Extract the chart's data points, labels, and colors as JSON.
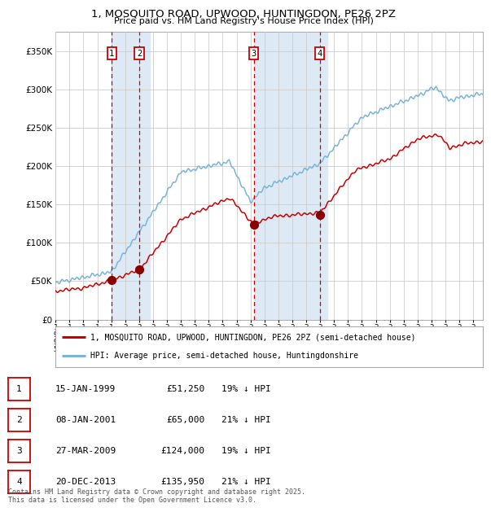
{
  "title_line1": "1, MOSQUITO ROAD, UPWOOD, HUNTINGDON, PE26 2PZ",
  "title_line2": "Price paid vs. HM Land Registry's House Price Index (HPI)",
  "legend_entry1": "1, MOSQUITO ROAD, UPWOOD, HUNTINGDON, PE26 2PZ (semi-detached house)",
  "legend_entry2": "HPI: Average price, semi-detached house, Huntingdonshire",
  "footer": "Contains HM Land Registry data © Crown copyright and database right 2025.\nThis data is licensed under the Open Government Licence v3.0.",
  "transactions": [
    {
      "num": 1,
      "date": "15-JAN-1999",
      "price": "£51,250",
      "pct": "19% ↓ HPI"
    },
    {
      "num": 2,
      "date": "08-JAN-2001",
      "price": "£65,000",
      "pct": "21% ↓ HPI"
    },
    {
      "num": 3,
      "date": "27-MAR-2009",
      "price": "£124,000",
      "pct": "19% ↓ HPI"
    },
    {
      "num": 4,
      "date": "20-DEC-2013",
      "price": "£135,950",
      "pct": "21% ↓ HPI"
    }
  ],
  "transaction_dates_decimal": [
    1999.04,
    2001.02,
    2009.23,
    2013.97
  ],
  "transaction_prices": [
    51250,
    65000,
    124000,
    135950
  ],
  "shade_ranges": [
    [
      1999.04,
      2001.75
    ],
    [
      2009.23,
      2014.5
    ]
  ],
  "red_line_color": "#cc0000",
  "blue_line_color": "#7ab4d8",
  "vline_color": "#cc0000",
  "shade_color": "#ddeaf5",
  "background_color": "#ffffff",
  "grid_color": "#cccccc",
  "ylim": [
    0,
    375000
  ],
  "yticks": [
    0,
    50000,
    100000,
    150000,
    200000,
    250000,
    300000,
    350000
  ],
  "xmin": 1995.0,
  "xmax": 2025.7
}
